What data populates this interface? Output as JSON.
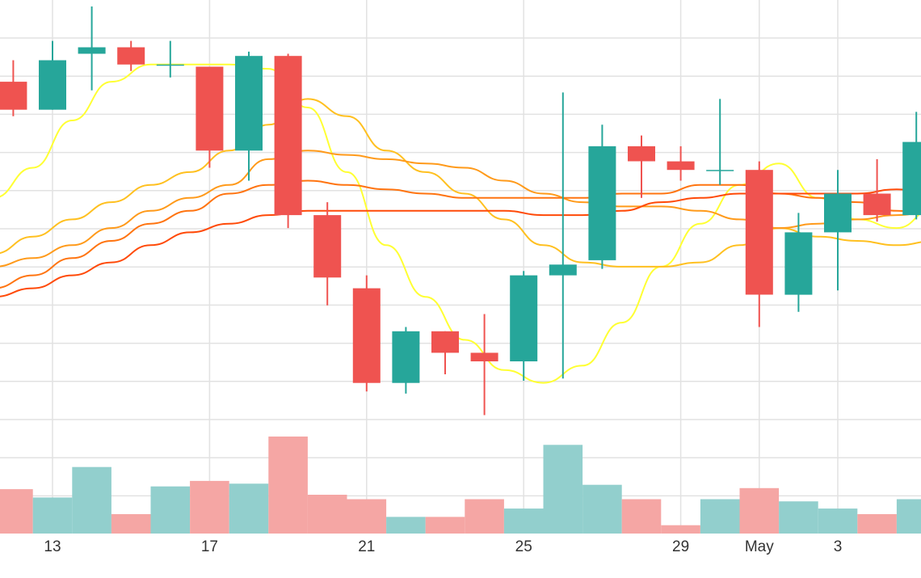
{
  "chart_data": {
    "type": "candlestick",
    "x_ticks": [
      "13",
      "17",
      "21",
      "25",
      "29",
      "May",
      "3"
    ],
    "grid": true,
    "legend": "none",
    "y_range_price": [
      0,
      11.5
    ],
    "y_range_volume": [
      0,
      3.5
    ],
    "candles": [
      {
        "day": 12,
        "open": 9.6,
        "high": 10.1,
        "low": 8.8,
        "close": 8.95
      },
      {
        "day": 13,
        "open": 8.95,
        "high": 10.55,
        "low": 8.95,
        "close": 10.1
      },
      {
        "day": 14,
        "open": 10.25,
        "high": 11.35,
        "low": 9.4,
        "close": 10.4
      },
      {
        "day": 15,
        "open": 10.4,
        "high": 10.55,
        "low": 9.85,
        "close": 10.0
      },
      {
        "day": 16,
        "open": 9.98,
        "high": 10.55,
        "low": 9.7,
        "close": 10.0
      },
      {
        "day": 17,
        "open": 9.95,
        "high": 9.95,
        "low": 7.6,
        "close": 8.0
      },
      {
        "day": 18,
        "open": 8.0,
        "high": 10.3,
        "low": 7.3,
        "close": 10.2
      },
      {
        "day": 19,
        "open": 10.2,
        "high": 10.25,
        "low": 6.2,
        "close": 6.5
      },
      {
        "day": 20,
        "open": 6.5,
        "high": 6.8,
        "low": 4.4,
        "close": 5.05
      },
      {
        "day": 21,
        "open": 4.8,
        "high": 5.1,
        "low": 2.4,
        "close": 2.6
      },
      {
        "day": 22,
        "open": 2.6,
        "high": 3.9,
        "low": 2.35,
        "close": 3.8
      },
      {
        "day": 23,
        "open": 3.8,
        "high": 3.8,
        "low": 2.8,
        "close": 3.3
      },
      {
        "day": 24,
        "open": 3.3,
        "high": 4.2,
        "low": 1.85,
        "close": 3.1
      },
      {
        "day": 25,
        "open": 3.1,
        "high": 5.2,
        "low": 2.65,
        "close": 5.1
      },
      {
        "day": 26,
        "open": 5.1,
        "high": 9.35,
        "low": 2.7,
        "close": 5.35
      },
      {
        "day": 27,
        "open": 5.45,
        "high": 8.6,
        "low": 5.25,
        "close": 8.1
      },
      {
        "day": 28,
        "open": 8.1,
        "high": 8.35,
        "low": 6.9,
        "close": 7.75
      },
      {
        "day": 29,
        "open": 7.75,
        "high": 8.1,
        "low": 7.3,
        "close": 7.55
      },
      {
        "day": 30,
        "open": 7.55,
        "high": 9.2,
        "low": 7.2,
        "close": 7.55
      },
      {
        "day": 31,
        "open": 7.55,
        "high": 7.75,
        "low": 3.9,
        "close": 4.65
      },
      {
        "day": 32,
        "open": 4.65,
        "high": 6.55,
        "low": 4.25,
        "close": 6.1
      },
      {
        "day": 33,
        "open": 6.1,
        "high": 7.55,
        "low": 4.75,
        "close": 7.0
      },
      {
        "day": 34,
        "open": 7.0,
        "high": 7.8,
        "low": 6.35,
        "close": 6.5
      },
      {
        "day": 35,
        "open": 6.5,
        "high": 8.9,
        "low": 6.4,
        "close": 8.2
      }
    ],
    "volume": [
      0.8,
      0.65,
      1.2,
      0.35,
      0.85,
      0.95,
      0.9,
      1.75,
      0.7,
      0.62,
      0.3,
      0.3,
      0.62,
      0.45,
      1.6,
      0.88,
      0.62,
      0.15,
      0.62,
      0.82,
      0.58,
      0.45,
      0.35,
      0.62
    ],
    "moving_averages": [
      {
        "color": "#ffff33",
        "values": [
          6.9,
          7.6,
          8.7,
          9.6,
          10.0,
          10.0,
          10.0,
          9.9,
          9.0,
          7.5,
          5.8,
          4.6,
          3.6,
          2.9,
          2.6,
          3.0,
          4.0,
          5.3,
          6.3,
          7.2,
          7.7,
          6.9,
          6.4,
          6.2,
          6.7
        ]
      },
      {
        "color": "#ffc020",
        "values": [
          5.6,
          6.0,
          6.4,
          6.8,
          7.2,
          7.5,
          8.0,
          8.6,
          9.2,
          8.8,
          8.0,
          7.5,
          7.0,
          6.4,
          5.8,
          5.4,
          5.3,
          5.3,
          5.4,
          5.8,
          6.2,
          6.0,
          5.9,
          5.8,
          5.9
        ]
      },
      {
        "color": "#ff9a1a",
        "values": [
          5.3,
          5.5,
          5.8,
          6.2,
          6.6,
          6.9,
          7.2,
          7.8,
          8.0,
          7.9,
          7.8,
          7.7,
          7.6,
          7.3,
          7.0,
          6.8,
          6.7,
          6.7,
          6.6,
          6.4,
          6.2,
          6.3,
          6.4,
          6.5,
          6.6
        ]
      },
      {
        "color": "#ff7410",
        "values": [
          4.8,
          5.1,
          5.5,
          5.9,
          6.3,
          6.6,
          7.0,
          7.2,
          7.3,
          7.2,
          7.1,
          7.0,
          6.9,
          6.9,
          6.9,
          6.9,
          7.0,
          7.0,
          7.2,
          7.2,
          7.0,
          6.9,
          6.8,
          6.6,
          6.5
        ]
      },
      {
        "color": "#ff4a08",
        "values": [
          4.6,
          4.8,
          5.1,
          5.4,
          5.8,
          6.1,
          6.3,
          6.5,
          6.6,
          6.6,
          6.6,
          6.6,
          6.6,
          6.6,
          6.5,
          6.5,
          6.6,
          6.8,
          6.9,
          7.0,
          7.0,
          7.0,
          7.0,
          7.1,
          7.0
        ]
      }
    ],
    "colors": {
      "up": "#26a69a",
      "down": "#ef5350",
      "volume_up": "#92cfcd",
      "volume_down": "#f5a6a4",
      "grid": "#e2e2e2"
    }
  }
}
